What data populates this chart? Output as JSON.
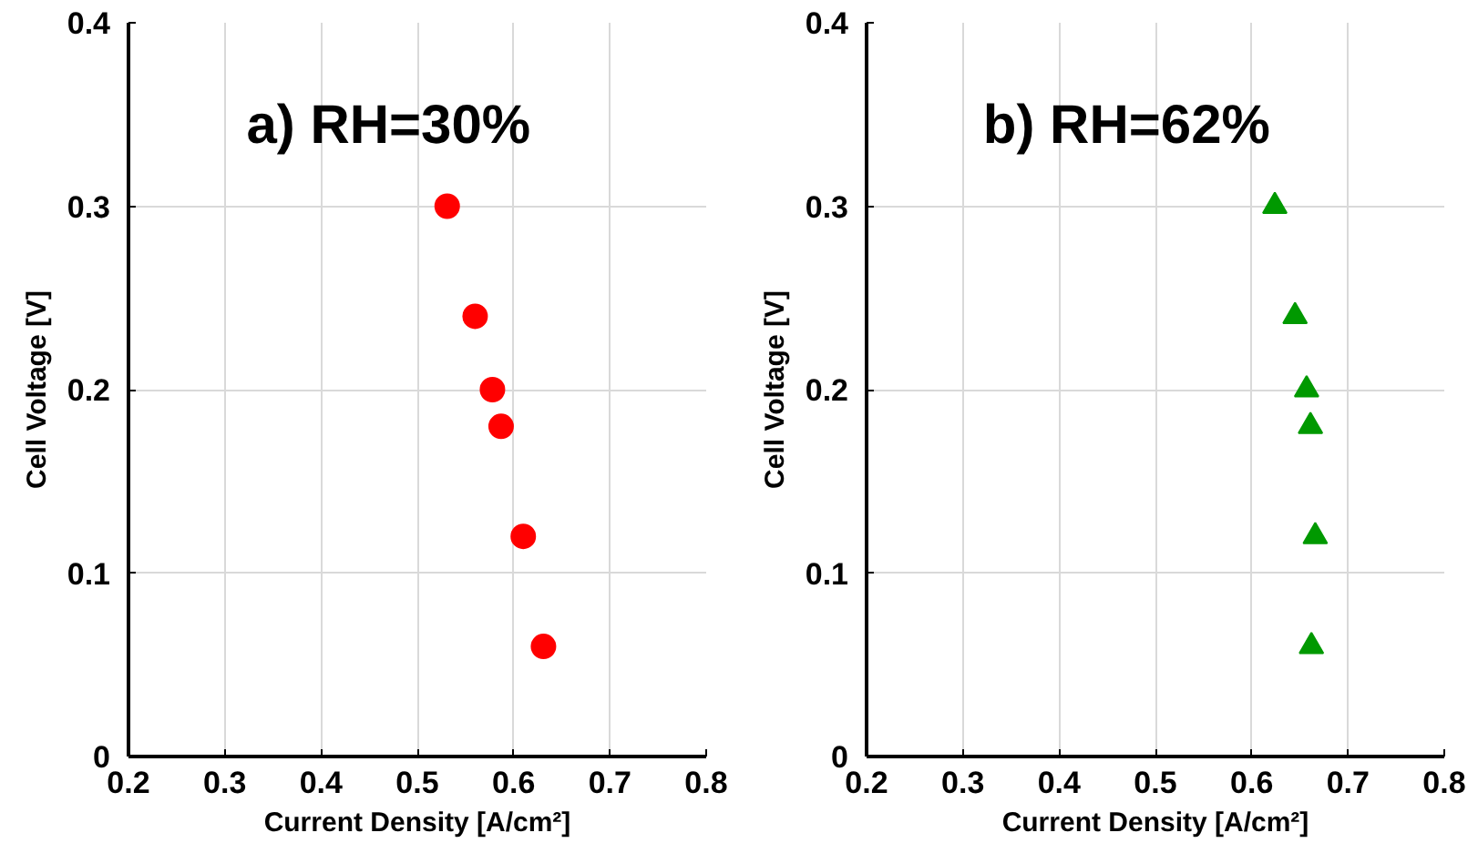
{
  "chart_data": [
    {
      "type": "scatter",
      "title": "a) RH=30%",
      "xlabel": "Current Density [A/cm²]",
      "ylabel": "Cell Voltage [V]",
      "marker": "circle",
      "grid": true,
      "xlim": [
        0.2,
        0.8
      ],
      "ylim": [
        0,
        0.4
      ],
      "xticks": [
        0.2,
        0.3,
        0.4,
        0.5,
        0.6,
        0.7,
        0.8
      ],
      "yticks": [
        0,
        0.1,
        0.2,
        0.3,
        0.4
      ],
      "x": [
        0.531,
        0.56,
        0.578,
        0.587,
        0.61,
        0.631
      ],
      "series": [
        {
          "color": "#ff0000",
          "values": [
            0.3,
            0.24,
            0.2,
            0.18,
            0.12,
            0.06
          ]
        }
      ]
    },
    {
      "type": "scatter",
      "title": "b) RH=62%",
      "xlabel": "Current Density [A/cm²]",
      "ylabel": "Cell Voltage [V]",
      "marker": "triangle",
      "grid": true,
      "xlim": [
        0.2,
        0.8
      ],
      "ylim": [
        0,
        0.4
      ],
      "xticks": [
        0.2,
        0.3,
        0.4,
        0.5,
        0.6,
        0.7,
        0.8
      ],
      "yticks": [
        0,
        0.1,
        0.2,
        0.3,
        0.4
      ],
      "x": [
        0.624,
        0.645,
        0.657,
        0.661,
        0.666,
        0.662
      ],
      "series": [
        {
          "color": "#009900",
          "values": [
            0.3,
            0.24,
            0.2,
            0.18,
            0.12,
            0.06
          ]
        }
      ]
    }
  ]
}
